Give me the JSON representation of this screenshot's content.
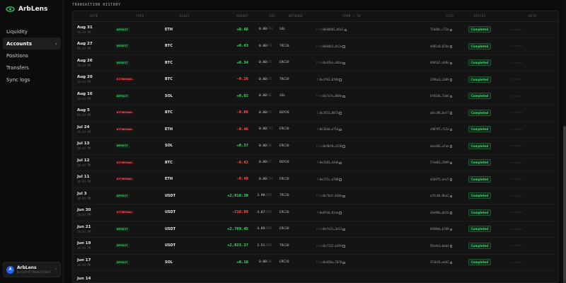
{
  "app": {
    "name": "ArbLens"
  },
  "sidebar": {
    "items": [
      {
        "label": "Liquidity",
        "active": false
      },
      {
        "label": "Accounts",
        "active": true
      },
      {
        "label": "Positions",
        "active": false
      },
      {
        "label": "Transfers",
        "active": false
      },
      {
        "label": "Sync logs",
        "active": false
      }
    ],
    "chevron": "›"
  },
  "user": {
    "initials": "A",
    "name": "ArbLens",
    "address": "0x1a4fd7790e0c7a56ef",
    "chevron": "⌃"
  },
  "page": {
    "section_title": "TRANSACTION HISTORY"
  },
  "table": {
    "columns": {
      "date": "DATE",
      "type": "TYPE",
      "asset": "ASSET",
      "amount": "AMOUNT",
      "fee": "FEE",
      "network": "NETWORK",
      "from_to": "FROM / TO",
      "txid": "TXID",
      "status": "STATUS",
      "note": "NOTE"
    },
    "rows": [
      {
        "date": "Aug 31",
        "time": "10:44 PM",
        "type": "DEPOSIT",
        "kind": "deposit",
        "asset": "ETH",
        "amount": "+0.48",
        "fee": "0.00",
        "fee_unit": "ETH",
        "network": "SOL",
        "direction": "From",
        "address": "0x8d0b5…b6a1",
        "txid": "71dd8c…c71b",
        "status": "Completed",
        "note": "no notes"
      },
      {
        "date": "Aug 27",
        "time": "08:44 PM",
        "type": "DEPOSIT",
        "kind": "deposit",
        "asset": "BTC",
        "amount": "+0.43",
        "fee": "0.00",
        "fee_unit": "BTC",
        "network": "TRC20",
        "direction": "From",
        "address": "0x0db3…4c2e",
        "txid": "e985c0…02dd",
        "status": "Completed",
        "note": "no notes"
      },
      {
        "date": "Aug 26",
        "time": "10:44 PM",
        "type": "DEPOSIT",
        "kind": "deposit",
        "asset": "BTC",
        "amount": "+0.34",
        "fee": "0.00",
        "fee_unit": "BTC",
        "network": "ERC20",
        "direction": "From",
        "address": "0x87be…d4ba",
        "txid": "8985b7…449e",
        "status": "Completed",
        "note": "no notes"
      },
      {
        "date": "Aug 20",
        "time": "10:44 PM",
        "type": "WITHDRAWAL",
        "kind": "withdrawal",
        "asset": "BTC",
        "amount": "-0.26",
        "fee": "0.00",
        "fee_unit": "BTC",
        "network": "TRC20",
        "direction": "To",
        "address": "0x3f03…8f89",
        "txid": "359be1…2489",
        "status": "Completed",
        "note": "no notes"
      },
      {
        "date": "Aug 16",
        "time": "10:44 PM",
        "type": "DEPOSIT",
        "kind": "deposit",
        "asset": "SOL",
        "amount": "+0.02",
        "fee": "0.00",
        "fee_unit": "SOL",
        "network": "SOL",
        "direction": "From",
        "address": "0x7a7e…8b8e",
        "txid": "bf054b…7ab6",
        "status": "Completed",
        "note": "no notes"
      },
      {
        "date": "Aug 5",
        "time": "09:44 PM",
        "type": "WITHDRAWAL",
        "kind": "withdrawal",
        "asset": "BTC",
        "amount": "-0.06",
        "fee": "0.00",
        "fee_unit": "BTC",
        "network": "BEP20",
        "direction": "To",
        "address": "0x2653…8873",
        "txid": "a8cc96…6ef7",
        "status": "Completed",
        "note": "no notes"
      },
      {
        "date": "Jul 24",
        "time": "10:44 PM",
        "type": "WITHDRAWAL",
        "kind": "withdrawal",
        "asset": "ETH",
        "amount": "-0.46",
        "fee": "0.00",
        "fee_unit": "ETH",
        "network": "ERC20",
        "direction": "To",
        "address": "0x33bd…e71d",
        "txid": "c98797…f12a",
        "status": "Completed",
        "note": "no notes"
      },
      {
        "date": "Jul 13",
        "time": "10:44 PM",
        "type": "DEPOSIT",
        "kind": "deposit",
        "asset": "SOL",
        "amount": "+0.37",
        "fee": "0.00",
        "fee_unit": "SOL",
        "network": "ERC20",
        "direction": "From",
        "address": "0x9bf8…e538",
        "txid": "ebcdd5…afae",
        "status": "Completed",
        "note": "no notes"
      },
      {
        "date": "Jul 12",
        "time": "10:44 PM",
        "type": "WITHDRAWAL",
        "kind": "withdrawal",
        "asset": "BTC",
        "amount": "-0.42",
        "fee": "0.00",
        "fee_unit": "BTC",
        "network": "BEP20",
        "direction": "To",
        "address": "0x3183…44db",
        "txid": "57ed61…2899",
        "status": "Completed",
        "note": "no notes"
      },
      {
        "date": "Jul 11",
        "time": "10:44 PM",
        "type": "WITHDRAWAL",
        "kind": "withdrawal",
        "asset": "ETH",
        "amount": "-0.48",
        "fee": "0.00",
        "fee_unit": "ETH",
        "network": "ERC20",
        "direction": "To",
        "address": "0x2f2c…d788",
        "txid": "a5b975…aec5",
        "status": "Completed",
        "note": "no notes"
      },
      {
        "date": "Jul 3",
        "time": "10:44 PM",
        "type": "DEPOSIT",
        "kind": "deposit",
        "asset": "USDT",
        "amount": "+2,916.30",
        "fee": "3.90",
        "fee_unit": "USDT",
        "network": "TRC20",
        "direction": "From",
        "address": "0x76af…b38e",
        "txid": "e25cb9…8ba2",
        "status": "Completed",
        "note": "no notes"
      },
      {
        "date": "Jun 30",
        "time": "10:44 PM",
        "type": "WITHDRAWAL",
        "kind": "withdrawal",
        "asset": "USDT",
        "amount": "-218.09",
        "fee": "4.07",
        "fee_unit": "USDT",
        "network": "ERC20",
        "direction": "To",
        "address": "0x8fd4…81ae",
        "txid": "43e99a…bb2a",
        "status": "Completed",
        "note": "no notes"
      },
      {
        "date": "Jun 21",
        "time": "10:44 PM",
        "type": "DEPOSIT",
        "kind": "deposit",
        "asset": "USDT",
        "amount": "+2,789.45",
        "fee": "4.09",
        "fee_unit": "USDT",
        "network": "ERC20",
        "direction": "From",
        "address": "0xfe21…3e13",
        "txid": "6698eb…b768",
        "status": "Completed",
        "note": "no notes"
      },
      {
        "date": "Jun 19",
        "time": "10:44 PM",
        "type": "DEPOSIT",
        "kind": "deposit",
        "asset": "USDT",
        "amount": "+2,023.37",
        "fee": "2.51",
        "fee_unit": "USDT",
        "network": "TRC20",
        "direction": "From",
        "address": "0x7132…b394",
        "txid": "59cde3…bbb4",
        "status": "Completed",
        "note": "no notes"
      },
      {
        "date": "Jun 17",
        "time": "10:44 PM",
        "type": "DEPOSIT",
        "kind": "deposit",
        "asset": "SOL",
        "amount": "+0.18",
        "fee": "0.00",
        "fee_unit": "SOL",
        "network": "ERC20",
        "direction": "From",
        "address": "0x050a…7070",
        "txid": "251bf8…add2",
        "status": "Completed",
        "note": "no notes"
      },
      {
        "date": "Jun 14",
        "time": "",
        "type": "",
        "kind": "",
        "asset": "",
        "amount": "",
        "fee": "",
        "fee_unit": "",
        "network": "",
        "direction": "",
        "address": "",
        "txid": "",
        "status": "",
        "note": ""
      }
    ]
  },
  "colors": {
    "accent_green": "#3ee06e",
    "accent_red": "#ff5757",
    "background": "#0c0c0c",
    "avatar": "#2563eb"
  }
}
